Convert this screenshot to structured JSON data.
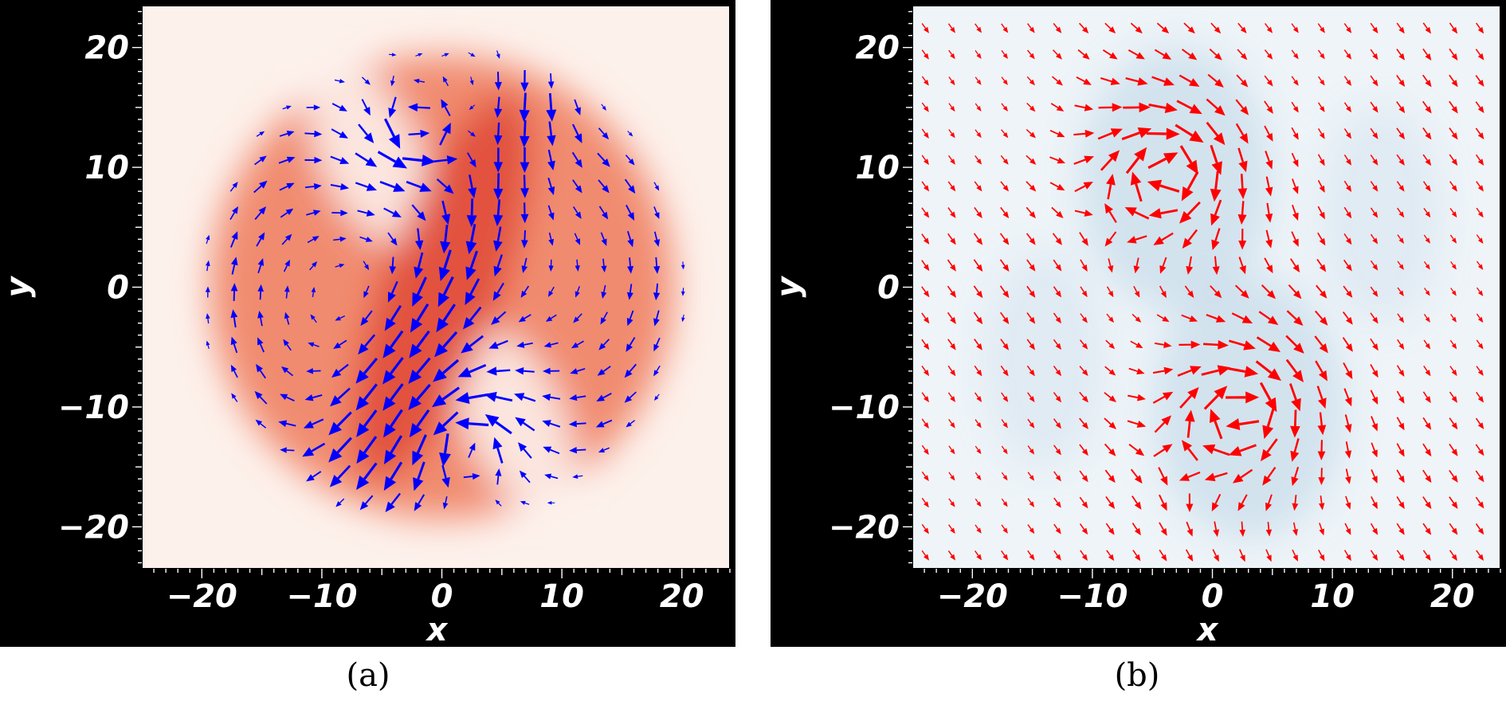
{
  "chart_data": [
    {
      "id": "a",
      "type": "vector-field-over-colormap",
      "caption": "(a)",
      "xlabel": "x",
      "ylabel": "y",
      "xlim": [
        -25,
        24
      ],
      "ylim": [
        -23.5,
        23.5
      ],
      "xticks": [
        -20,
        -10,
        0,
        10,
        20
      ],
      "yticks": [
        -20,
        -10,
        0,
        10,
        20
      ],
      "xtick_labels": [
        "−20",
        "−10",
        "0",
        "10",
        "20"
      ],
      "ytick_labels": [
        "−20",
        "−10",
        "0",
        "10",
        "20"
      ],
      "colormap": "Reds",
      "background_color": "#fdf1ec",
      "field_color": "#ee7a5a",
      "arrow_color": "#0000ff",
      "domain": "disk of radius about 20 centered at origin",
      "pattern": "S-shaped (yin-yang) dipole vortex pair; counter-rotating cores near (-2, 13) and (2, -13); strongest flow along central diagonal band"
    },
    {
      "id": "b",
      "type": "vector-field-over-colormap",
      "caption": "(b)",
      "xlabel": "x",
      "ylabel": "y",
      "xlim": [
        -25,
        24
      ],
      "ylim": [
        -23.5,
        23.5
      ],
      "xticks": [
        -20,
        -10,
        0,
        10,
        20
      ],
      "yticks": [
        -20,
        -10,
        0,
        10,
        20
      ],
      "xtick_labels": [
        "−20",
        "−10",
        "0",
        "10",
        "20"
      ],
      "ytick_labels": [
        "−20",
        "−10",
        "0",
        "10",
        "20"
      ],
      "colormap": "Blues",
      "background_color": "#eef4f8",
      "field_color": "#c6dbea",
      "arrow_color": "#ff0000",
      "domain": "full square",
      "pattern": "two vortex lobes with intense flow near (-2, 10) and (0, -12); weak diagonal background flow elsewhere"
    }
  ]
}
